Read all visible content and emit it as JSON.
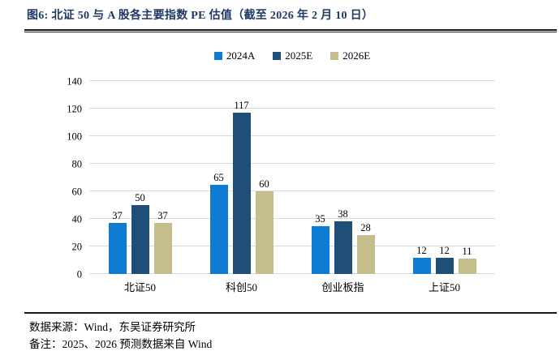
{
  "page": {
    "title": "图6:  北证 50 与 A 股各主要指数 PE 估值（截至 2026 年 2 月 10 日）",
    "source_line": "数据来源：Wind，东吴证券研究所",
    "note_line": "备注：2025、2026 预测数据来自 Wind"
  },
  "colors": {
    "title_navy": "#1f3864",
    "gridline": "#d9d9d9",
    "rule": "#1a1a1a",
    "series": [
      "#0e7cd2",
      "#1f4e79",
      "#c6bd8d"
    ]
  },
  "chart_data": {
    "type": "bar",
    "title": "北证50与A股各主要指数PE估值（截至2026年2月10日）",
    "categories": [
      "北证50",
      "科创50",
      "创业板指",
      "上证50"
    ],
    "series": [
      {
        "name": "2024A",
        "color": "#0e7cd2",
        "values": [
          37,
          65,
          35,
          12
        ]
      },
      {
        "name": "2025E",
        "color": "#1f4e79",
        "values": [
          50,
          117,
          38,
          12
        ]
      },
      {
        "name": "2026E",
        "color": "#c6bd8d",
        "values": [
          37,
          60,
          28,
          11
        ]
      }
    ],
    "xlabel": "",
    "ylabel": "",
    "ylim": [
      0,
      140
    ],
    "ytick_step": 20,
    "grid": "horizontal",
    "legend_position": "top-center",
    "value_labels": true
  }
}
